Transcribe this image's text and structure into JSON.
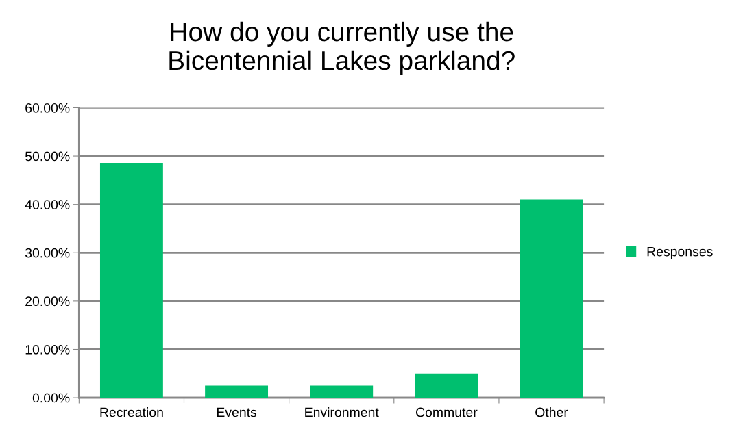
{
  "chart_data": {
    "type": "bar",
    "title": "How do you currently use the\nBicentennial Lakes parkland?",
    "categories": [
      "Recreation",
      "Events",
      "Environment",
      "Commuter",
      "Other"
    ],
    "series": [
      {
        "name": "Responses",
        "color": "#00bf6f",
        "values": [
          48.6,
          2.5,
          2.5,
          5.0,
          41.0
        ]
      }
    ],
    "ylim": [
      0,
      60
    ],
    "yticks": [
      {
        "value": 0,
        "label": "0.00%"
      },
      {
        "value": 10,
        "label": "10.00%"
      },
      {
        "value": 20,
        "label": "20.00%"
      },
      {
        "value": 30,
        "label": "30.00%"
      },
      {
        "value": 40,
        "label": "40.00%"
      },
      {
        "value": 50,
        "label": "50.00%"
      },
      {
        "value": 60,
        "label": "60.00%"
      }
    ],
    "grid": "y",
    "legend": "right"
  }
}
